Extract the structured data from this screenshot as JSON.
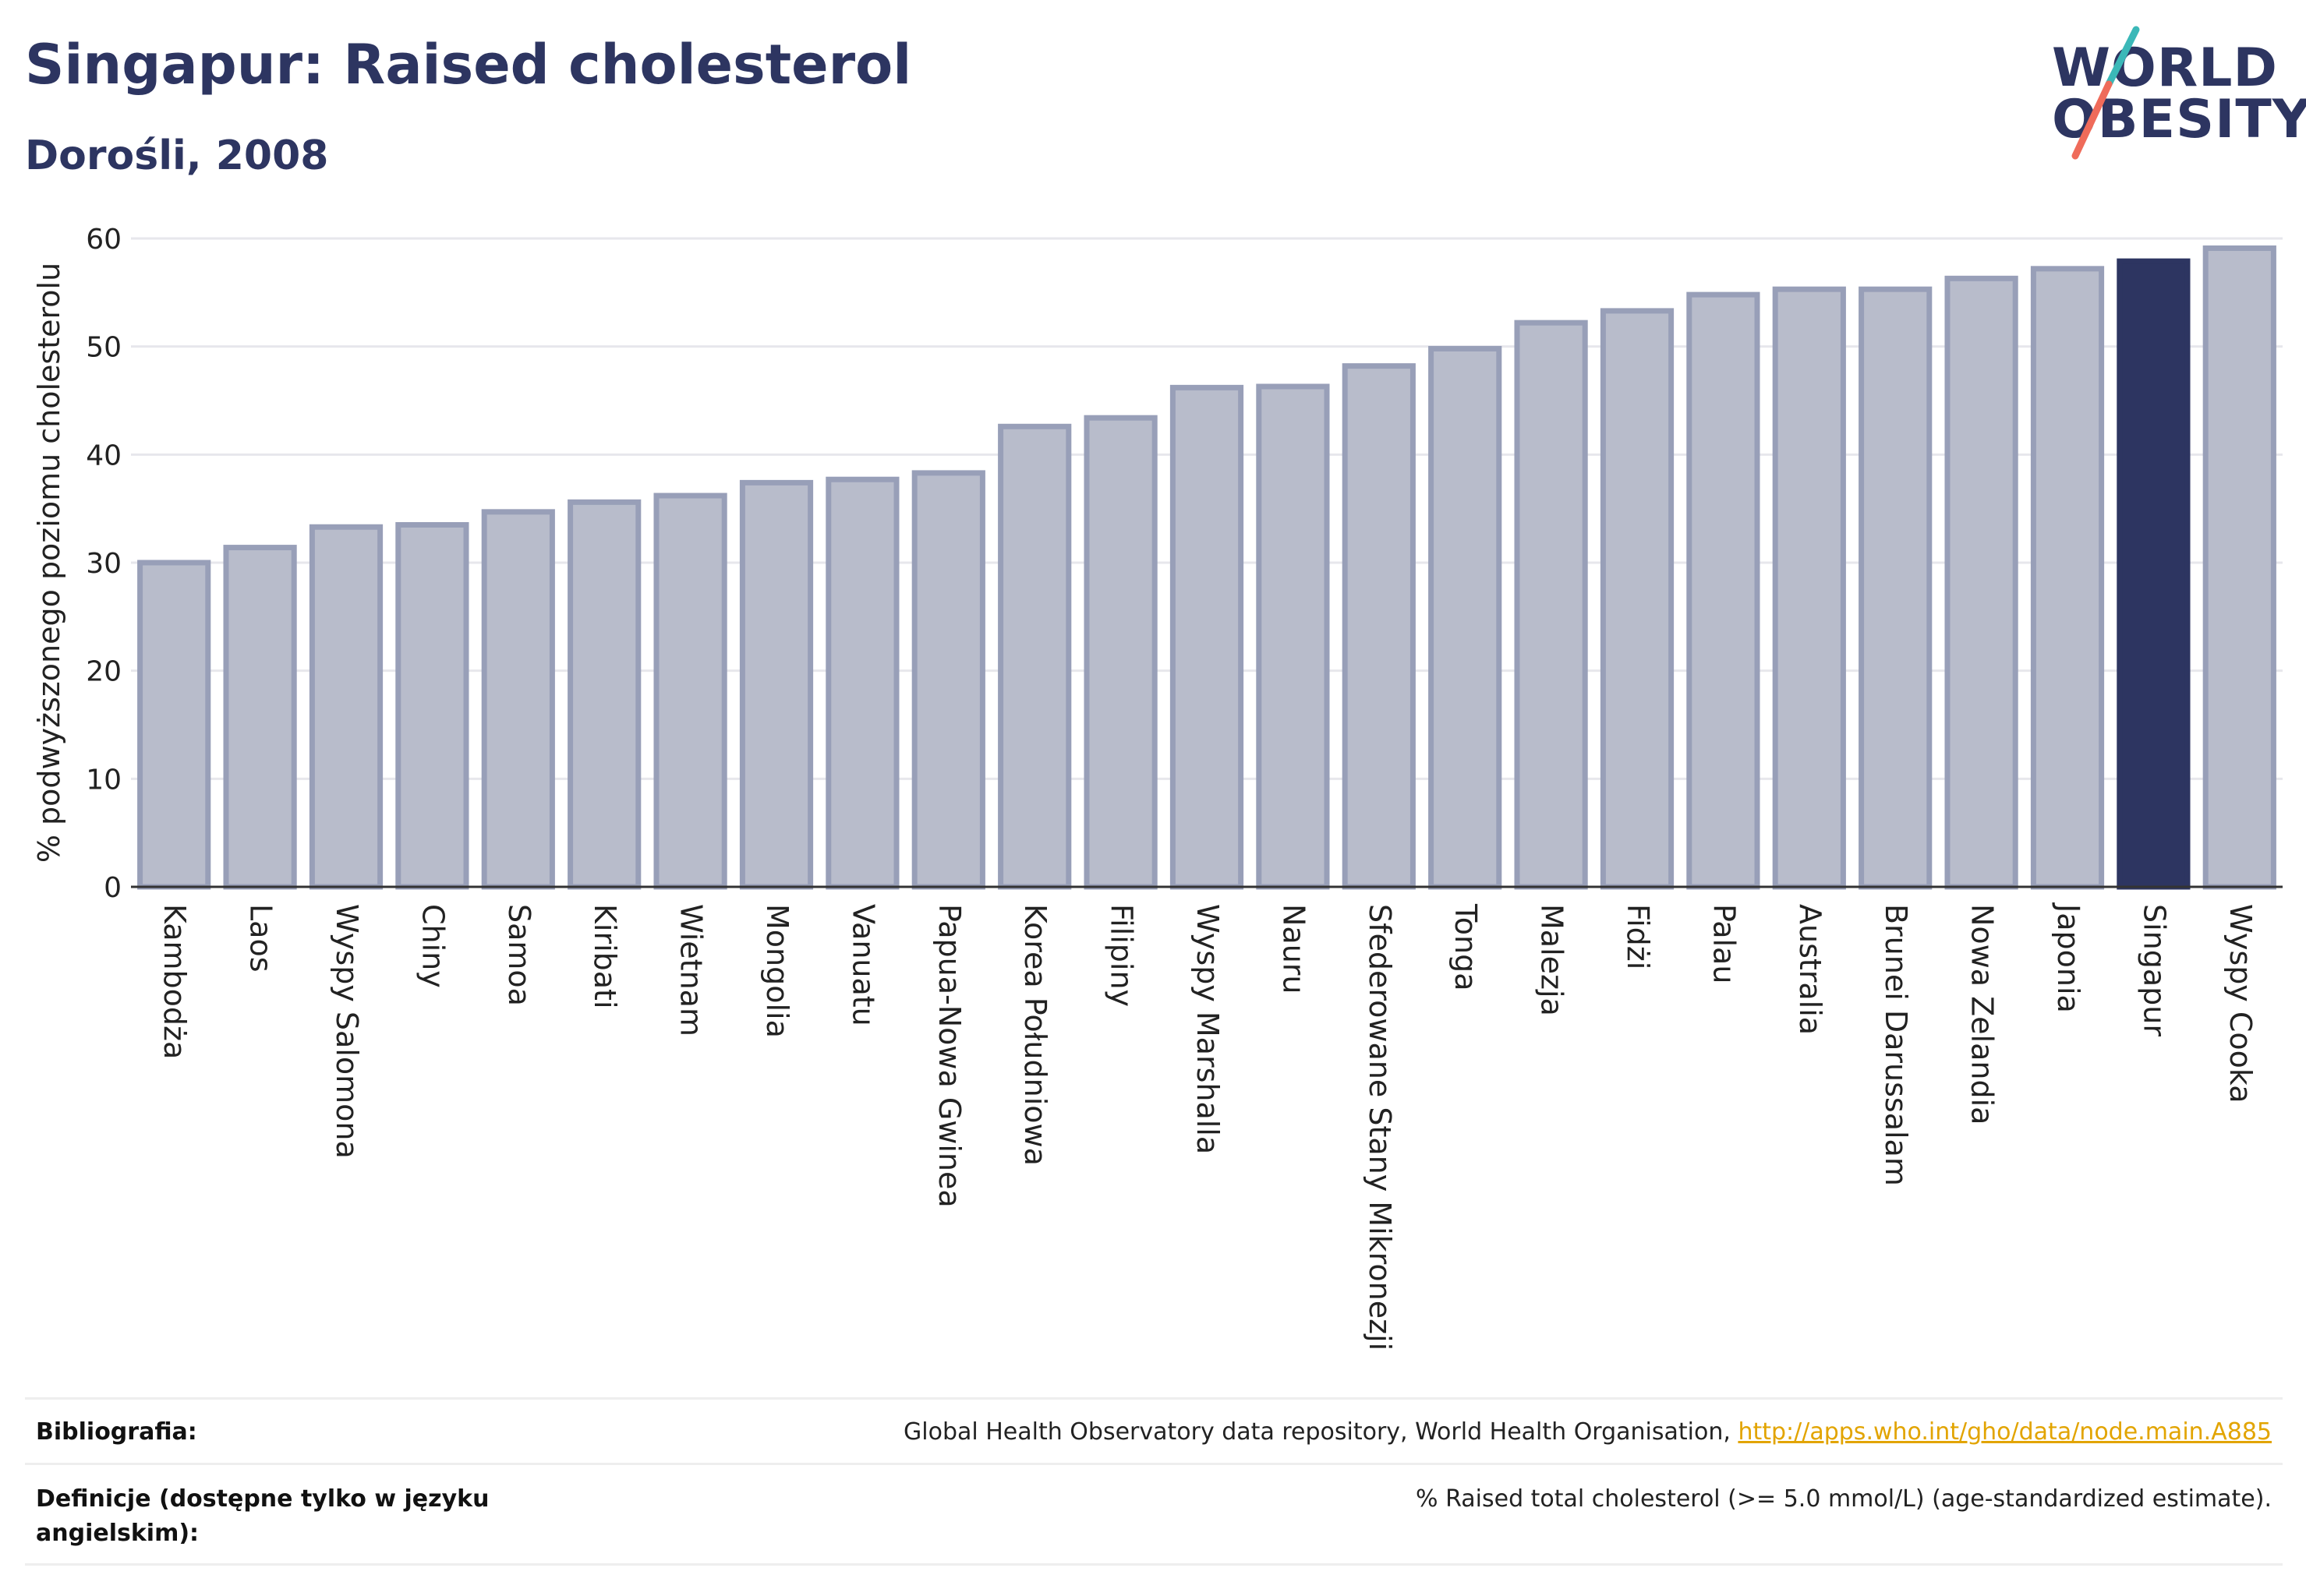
{
  "header": {
    "title": "Singapur: Raised cholesterol",
    "subtitle": "Dorośli, 2008"
  },
  "logo": {
    "line1": "WORLD",
    "line2": "OBESITY",
    "accent_teal": "#3bb8b8",
    "accent_coral": "#ef6b5a"
  },
  "colors": {
    "bar_default": "#b8bccb",
    "bar_border": "#989fb8",
    "bar_highlight": "#2d3561",
    "grid": "#e7e7ec"
  },
  "chart_data": {
    "type": "bar",
    "ylabel": "% podwyższonego poziomu cholesterolu",
    "ylim": [
      0,
      60
    ],
    "yticks": [
      0,
      10,
      20,
      30,
      40,
      50,
      60
    ],
    "grid": true,
    "highlight": "Singapur",
    "categories": [
      "Kambodża",
      "Laos",
      "Wyspy Salomona",
      "Chiny",
      "Samoa",
      "Kiribati",
      "Wietnam",
      "Mongolia",
      "Vanuatu",
      "Papua-Nowa Gwinea",
      "Korea Południowa",
      "Filipiny",
      "Wyspy Marshalla",
      "Nauru",
      "Sfederowane Stany Mikronezji",
      "Tonga",
      "Malezja",
      "Fidżi",
      "Palau",
      "Australia",
      "Brunei Darussalam",
      "Nowa Zelandia",
      "Japonia",
      "Singapur",
      "Wyspy Cooka"
    ],
    "values": [
      30.0,
      31.4,
      33.3,
      33.5,
      34.7,
      35.6,
      36.2,
      37.4,
      37.7,
      38.3,
      42.6,
      43.4,
      46.2,
      46.3,
      48.2,
      49.8,
      52.2,
      53.3,
      54.8,
      55.3,
      55.3,
      56.3,
      57.2,
      57.9,
      59.1
    ]
  },
  "footer": {
    "bibliography_label": "Bibliografia:",
    "bibliography_text": "Global Health Observatory data repository, World Health Organisation, ",
    "bibliography_link": "http://apps.who.int/gho/data/node.main.A885",
    "definitions_label": "Definicje (dostępne tylko w języku angielskim):",
    "definitions_text": "% Raised total cholesterol (>= 5.0 mmol/L) (age-standardized estimate)."
  }
}
